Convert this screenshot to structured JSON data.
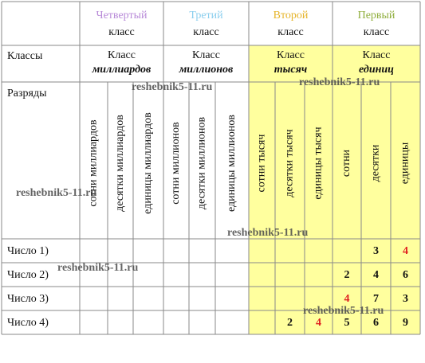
{
  "header": {
    "classes": [
      {
        "ordinal": "Четвертый",
        "word": "класс",
        "name": "Класс",
        "name2": "миллиардов",
        "color": "#b88ad8"
      },
      {
        "ordinal": "Третий",
        "word": "класс",
        "name": "Класс",
        "name2": "миллионов",
        "color": "#8ccfee"
      },
      {
        "ordinal": "Второй",
        "word": "класс",
        "name": "Класс",
        "name2": "тысяч",
        "color": "#e6b42a"
      },
      {
        "ordinal": "Первый",
        "word": "класс",
        "name": "Класс",
        "name2": "единиц",
        "color": "#8fae3c"
      }
    ]
  },
  "row_labels": {
    "classes": "Классы",
    "ranks": "Разряды"
  },
  "ranks": [
    "сотни миллиардов",
    "десятки миллиардов",
    "единицы миллиардов",
    "сотни миллионов",
    "десятки миллионов",
    "единицы  миллионов",
    "сотни тысяч",
    "десятки тысяч",
    "единицы тысяч",
    "сотни",
    "десятки",
    "единицы"
  ],
  "numbers": [
    {
      "label": "Число 1)",
      "digits": [
        null,
        null,
        null,
        null,
        null,
        null,
        null,
        null,
        null,
        null,
        3,
        4
      ],
      "red": [
        11
      ]
    },
    {
      "label": "Число 2)",
      "digits": [
        null,
        null,
        null,
        null,
        null,
        null,
        null,
        null,
        null,
        2,
        4,
        6
      ],
      "red": []
    },
    {
      "label": "Число 3)",
      "digits": [
        null,
        null,
        null,
        null,
        null,
        null,
        null,
        null,
        null,
        4,
        7,
        3
      ],
      "red": [
        9
      ]
    },
    {
      "label": "Число 4)",
      "digits": [
        null,
        null,
        null,
        null,
        null,
        null,
        null,
        2,
        4,
        5,
        6,
        9
      ],
      "red": [
        8
      ]
    }
  ],
  "highlight_color": "#ffff9e",
  "watermarks": [
    "reshebnik5-11.ru",
    "reshebnik5-11.ru",
    "reshebnik5-11.ru",
    "reshebnik5-11.ru",
    "reshebnik5-11.ru",
    "reshebnik5-11.ru"
  ]
}
